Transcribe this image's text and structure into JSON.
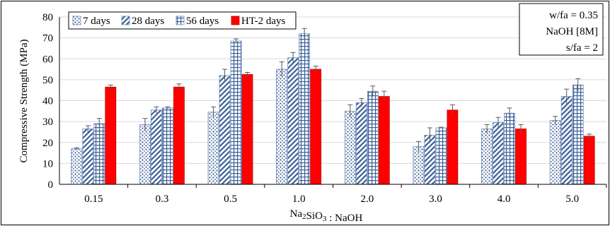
{
  "chart_data": {
    "type": "bar",
    "title": "",
    "xlabel": "Na₂SiO₃ : NaOH",
    "ylabel": "Compressive Strength (MPa)",
    "ylim": [
      0,
      80
    ],
    "yticks": [
      0,
      10,
      20,
      30,
      40,
      50,
      60,
      70,
      80
    ],
    "grid": "horizontal",
    "legend_position": "top-left",
    "categories": [
      "0.15",
      "0.3",
      "0.5",
      "1.0",
      "2.0",
      "3.0",
      "4.0",
      "5.0"
    ],
    "series": [
      {
        "name": "7 days",
        "pattern": "dots",
        "color": "#4a6fa5",
        "values": [
          17,
          28.5,
          34.5,
          55,
          35,
          18,
          26.5,
          30.5
        ],
        "errors": [
          0.5,
          3,
          2.5,
          3.5,
          3,
          2.5,
          2,
          2
        ]
      },
      {
        "name": "28 days",
        "pattern": "diagonal",
        "color": "#4a6fa5",
        "values": [
          26.5,
          35.5,
          52,
          60.5,
          39,
          23.5,
          29.5,
          42
        ],
        "errors": [
          1.5,
          1.5,
          3,
          2.5,
          2,
          3.5,
          2.5,
          3.5
        ]
      },
      {
        "name": "56 days",
        "pattern": "grid",
        "color": "#4a6fa5",
        "values": [
          29,
          36.5,
          68.5,
          72,
          44.5,
          27,
          34,
          47.5
        ],
        "errors": [
          2.5,
          0.5,
          1,
          2.5,
          2.5,
          0.3,
          2.5,
          3
        ]
      },
      {
        "name": "HT-2 days",
        "pattern": "solid",
        "color": "#ff0000",
        "values": [
          46.5,
          46.5,
          52.5,
          55,
          42,
          35.5,
          26.5,
          23
        ],
        "errors": [
          1,
          1.5,
          1,
          1.5,
          2.5,
          2.5,
          2,
          1
        ]
      }
    ],
    "annotations": [
      "w/fa = 0.35",
      "NaOH [8M]",
      "s/fa = 2"
    ]
  }
}
